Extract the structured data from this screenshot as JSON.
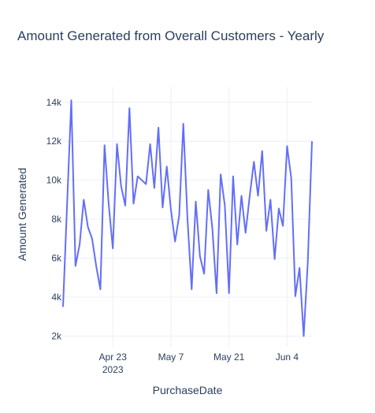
{
  "chart_data": {
    "type": "line",
    "title": "Amount Generated from Overall Customers - Yearly",
    "xlabel": "PurchaseDate",
    "ylabel": "Amount Generated",
    "x_start": "2023-04-11",
    "x_end": "2023-06-10",
    "x_ticks": [
      {
        "date": "2023-04-23",
        "label": "Apr 23",
        "sub": "2023"
      },
      {
        "date": "2023-05-07",
        "label": "May 7",
        "sub": ""
      },
      {
        "date": "2023-05-21",
        "label": "May 21",
        "sub": ""
      },
      {
        "date": "2023-06-04",
        "label": "Jun 4",
        "sub": ""
      }
    ],
    "ylim": [
      1450,
      14800
    ],
    "y_ticks": [
      {
        "value": 2000,
        "label": "2k"
      },
      {
        "value": 4000,
        "label": "4k"
      },
      {
        "value": 6000,
        "label": "6k"
      },
      {
        "value": 8000,
        "label": "8k"
      },
      {
        "value": 10000,
        "label": "10k"
      },
      {
        "value": 12000,
        "label": "12k"
      },
      {
        "value": 14000,
        "label": "14k"
      }
    ],
    "grid": true,
    "line_color": "#636efa",
    "series": [
      {
        "x": [
          "2023-04-11",
          "2023-04-12",
          "2023-04-13",
          "2023-04-14",
          "2023-04-15",
          "2023-04-16",
          "2023-04-17",
          "2023-04-18",
          "2023-04-19",
          "2023-04-20",
          "2023-04-21",
          "2023-04-22",
          "2023-04-23",
          "2023-04-24",
          "2023-04-25",
          "2023-04-26",
          "2023-04-27",
          "2023-04-28",
          "2023-04-29",
          "2023-04-30",
          "2023-05-01",
          "2023-05-02",
          "2023-05-03",
          "2023-05-04",
          "2023-05-05",
          "2023-05-06",
          "2023-05-07",
          "2023-05-08",
          "2023-05-09",
          "2023-05-10",
          "2023-05-11",
          "2023-05-12",
          "2023-05-13",
          "2023-05-14",
          "2023-05-15",
          "2023-05-16",
          "2023-05-17",
          "2023-05-18",
          "2023-05-19",
          "2023-05-20",
          "2023-05-21",
          "2023-05-22",
          "2023-05-23",
          "2023-05-24",
          "2023-05-25",
          "2023-05-26",
          "2023-05-27",
          "2023-05-28",
          "2023-05-29",
          "2023-05-30",
          "2023-05-31",
          "2023-06-01",
          "2023-06-02",
          "2023-06-03",
          "2023-06-04",
          "2023-06-05",
          "2023-06-06",
          "2023-06-07",
          "2023-06-08",
          "2023-06-09",
          "2023-06-10"
        ],
        "values": [
          3500,
          8900,
          14100,
          5600,
          6700,
          9000,
          7600,
          7000,
          5600,
          4400,
          11800,
          8800,
          6500,
          11850,
          9700,
          8700,
          13700,
          8800,
          10200,
          10000,
          9800,
          11850,
          9600,
          12700,
          8600,
          10700,
          8500,
          6850,
          8200,
          12900,
          8000,
          4400,
          8900,
          6100,
          5200,
          9500,
          7500,
          4200,
          10300,
          8700,
          4200,
          10200,
          6700,
          9200,
          7300,
          9200,
          10950,
          9200,
          11500,
          7400,
          9000,
          5950,
          8550,
          7650,
          11750,
          10100,
          4050,
          5500,
          2000,
          5800,
          12000
        ]
      }
    ]
  }
}
